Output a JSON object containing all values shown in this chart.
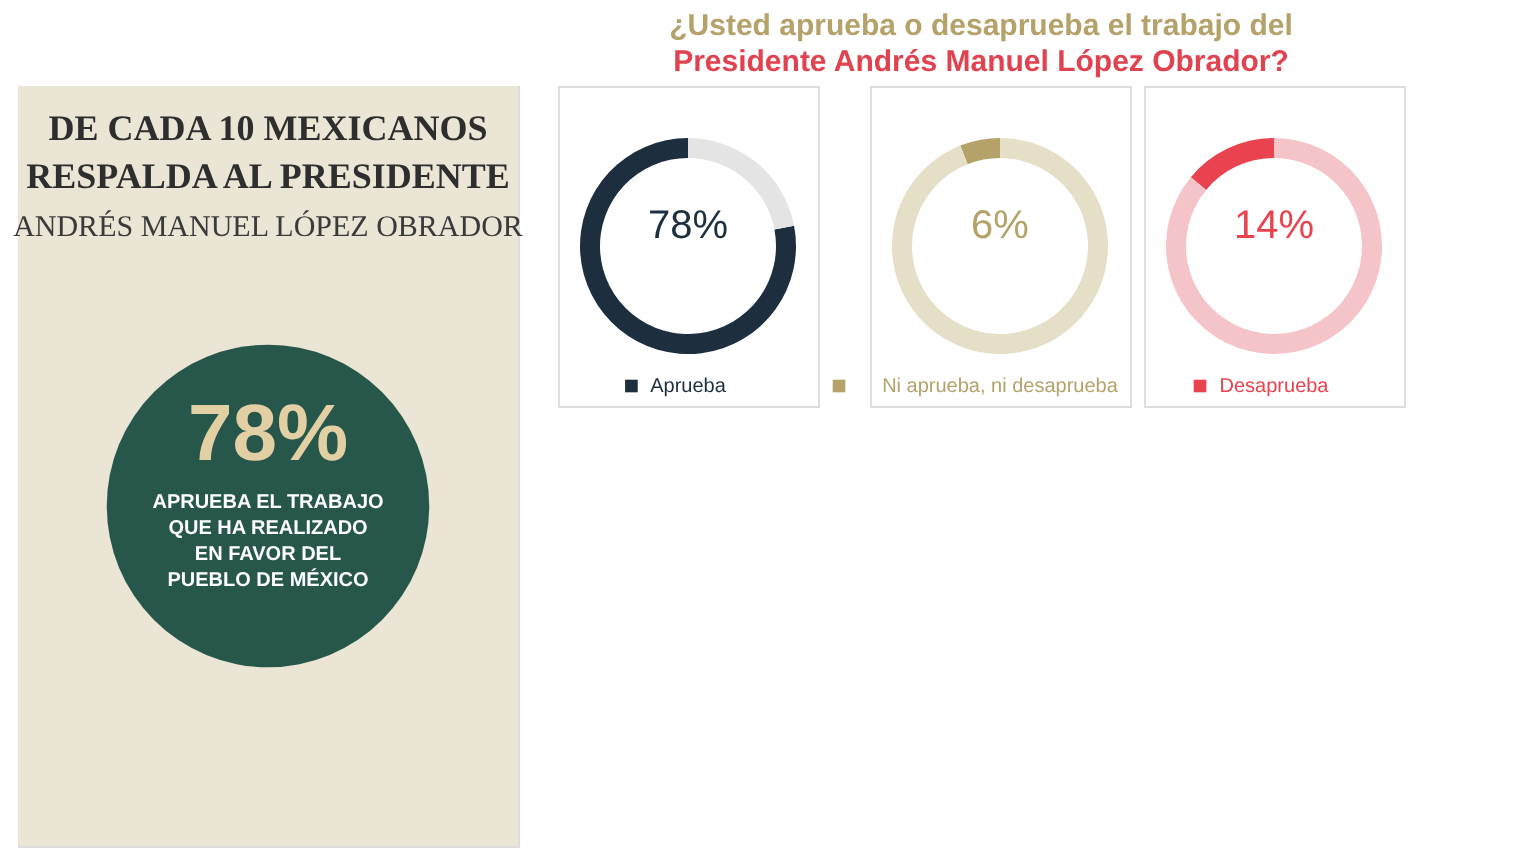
{
  "chart_data": [
    {
      "type": "other",
      "title": "DE CADA 10 MEXICANOS RESPALDA AL PRESIDENTE",
      "subtitle": "ANDRÉS MANUEL LÓPEZ OBRADOR",
      "annotations": [
        "78%",
        "APRUEBA EL TRABAJO QUE HA REALIZADO EN FAVOR DEL PUEBLO DE MÉXICO"
      ]
    },
    {
      "type": "donut",
      "title": "¿Usted aprueba o desaprueba el trabajo del",
      "subtitle": "Presidente Andrés Manuel López Obrador?",
      "categories": [
        "Aprueba",
        null
      ],
      "values": [
        78,
        22
      ],
      "colors": [
        "#1d2f3f",
        "#e4e4e4"
      ],
      "value_labels": [
        "78%",
        null
      ]
    },
    {
      "type": "donut",
      "categories": [
        "Ni aprueba, ni desaprueba",
        null
      ],
      "values": [
        6,
        94
      ],
      "colors": [
        "#b5a26a",
        "#e6dfc8"
      ],
      "value_labels": [
        "6%",
        null
      ]
    },
    {
      "type": "donut",
      "categories": [
        "Desaprueba",
        null
      ],
      "values": [
        14,
        86
      ],
      "colors": [
        "#e8434f",
        "#f4c4c8"
      ],
      "value_labels": [
        "14%",
        null
      ]
    }
  ]
}
